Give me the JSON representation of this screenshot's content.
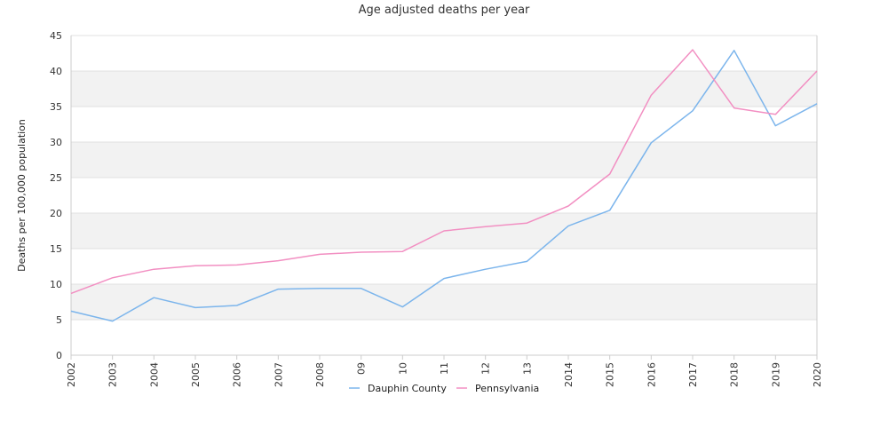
{
  "chart_data": {
    "type": "line",
    "title": "Age adjusted deaths per year",
    "xlabel": "",
    "ylabel": "Deaths per 100,000 population",
    "ylim": [
      0,
      45
    ],
    "yticks": [
      0,
      5,
      10,
      15,
      20,
      25,
      30,
      35,
      40,
      45
    ],
    "grid": "alternating horizontal bands",
    "legend_position": "bottom-center",
    "categories": [
      "2002",
      "2003",
      "2004",
      "2005",
      "2006",
      "2007",
      "2008",
      "09",
      "10",
      "11",
      "12",
      "13",
      "2014",
      "2015",
      "2016",
      "2017",
      "2018",
      "2019",
      "2020"
    ],
    "series": [
      {
        "name": "Dauphin County",
        "color": "#7cb5ec",
        "values": [
          6.2,
          4.8,
          8.1,
          6.7,
          7.0,
          9.3,
          9.4,
          9.4,
          6.8,
          10.8,
          12.1,
          13.2,
          18.2,
          20.4,
          29.9,
          34.4,
          42.9,
          32.3,
          35.4
        ]
      },
      {
        "name": "Pennsylvania",
        "color": "#f28fc2",
        "values": [
          8.7,
          10.9,
          12.1,
          12.6,
          12.7,
          13.3,
          14.2,
          14.5,
          14.6,
          17.5,
          18.1,
          18.6,
          21.0,
          25.5,
          36.6,
          43.0,
          34.8,
          33.9,
          40.0
        ]
      }
    ]
  },
  "colors": {
    "band_fill": "#f2f2f2",
    "grid_line": "#e0e0e0",
    "axis_line": "#cccccc"
  }
}
